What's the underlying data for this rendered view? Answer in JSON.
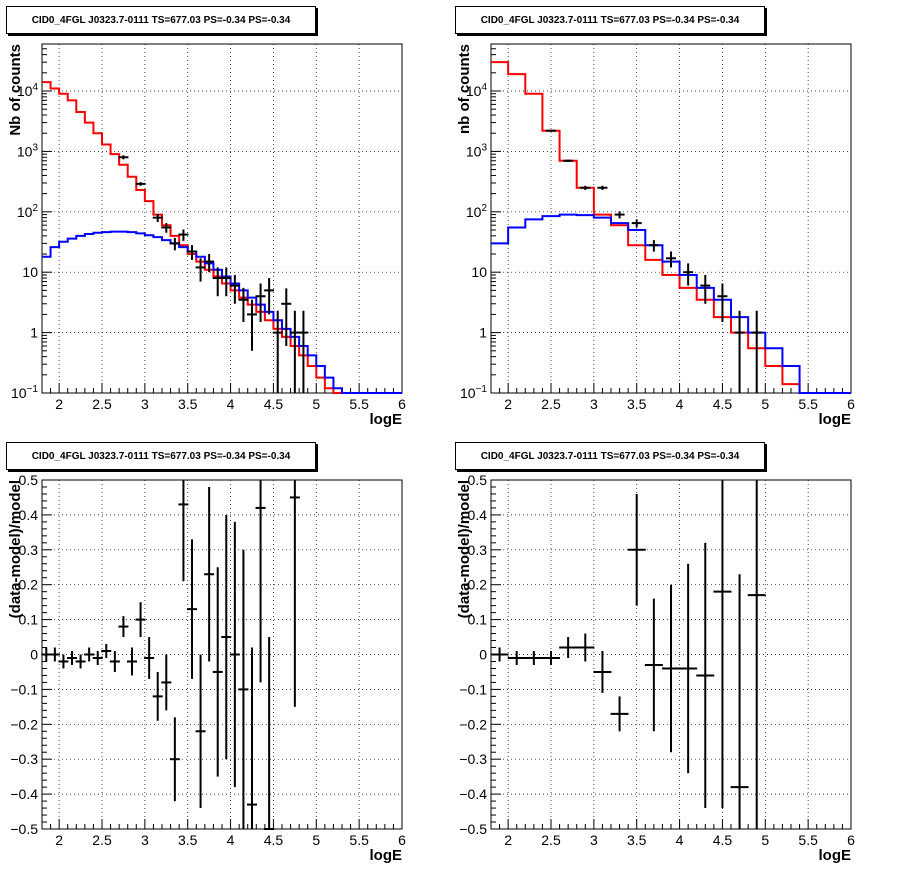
{
  "chart_data": [
    {
      "type": "line",
      "title": "CID0_4FGL J0323.7-0111 TS=677.03 PS=-0.34 PS=-0.34",
      "xlabel": "logE",
      "ylabel": "Nb of counts",
      "xlim": [
        1.8,
        6.0
      ],
      "ylim": [
        0.1,
        60000
      ],
      "yscale": "log",
      "grid": true,
      "xticks": [
        "2",
        "2.5",
        "3",
        "3.5",
        "4",
        "4.5",
        "5",
        "5.5",
        "6"
      ],
      "yticks": [
        "10^-1",
        "1",
        "10",
        "10^2",
        "10^3",
        "10^4"
      ],
      "bin_edges": [
        1.8,
        1.9,
        2.0,
        2.1,
        2.2,
        2.3,
        2.4,
        2.5,
        2.6,
        2.7,
        2.8,
        2.9,
        3.0,
        3.1,
        3.2,
        3.3,
        3.4,
        3.5,
        3.6,
        3.7,
        3.8,
        3.9,
        4.0,
        4.1,
        4.2,
        4.3,
        4.4,
        4.5,
        4.6,
        4.7,
        4.8,
        4.9,
        5.0,
        5.1,
        5.2,
        5.3,
        5.4,
        5.5,
        5.6,
        5.7,
        5.8,
        5.9,
        6.0
      ],
      "series": [
        {
          "color": "#ff0000",
          "style": "step",
          "values": [
            14000,
            11000,
            9000,
            7000,
            4500,
            3000,
            2000,
            1300,
            900,
            600,
            380,
            230,
            150,
            90,
            60,
            40,
            28,
            20,
            15,
            11,
            8.5,
            6.5,
            5,
            3.8,
            2.9,
            2.2,
            1.6,
            1.15,
            0.85,
            0.6,
            0.42,
            0.28,
            0.18,
            0.12,
            0.1,
            0.1,
            0.1,
            0.1,
            0.1,
            0.1,
            0.1,
            0.1
          ]
        },
        {
          "color": "#0000ff",
          "style": "step",
          "values": [
            18,
            26,
            32,
            36,
            40,
            43,
            45,
            46,
            47,
            47,
            46,
            44,
            41,
            38,
            34,
            30,
            26,
            22,
            18,
            14,
            11,
            8.5,
            6.5,
            5,
            3.8,
            2.9,
            2.2,
            1.6,
            1.15,
            0.85,
            0.6,
            0.42,
            0.28,
            0.18,
            0.12,
            0.1,
            0.1,
            0.1,
            0.1,
            0.1,
            0.1,
            0.1
          ]
        },
        {
          "color": "#000000",
          "style": "points",
          "x": [
            2.75,
            2.95,
            3.15,
            3.25,
            3.35,
            3.45,
            3.55,
            3.65,
            3.75,
            3.85,
            3.95,
            4.05,
            4.15,
            4.25,
            4.35,
            4.45,
            4.55,
            4.65,
            4.75,
            4.85
          ],
          "values": [
            800,
            290,
            80,
            55,
            30,
            42,
            22,
            12,
            15,
            8,
            8,
            6,
            3.5,
            2,
            4,
            5,
            1,
            3,
            1,
            1
          ],
          "yerr_lo": [
            60,
            20,
            12,
            10,
            7,
            9,
            6,
            5,
            5,
            4,
            4,
            3,
            2,
            1.5,
            2.5,
            3,
            0.9,
            2.4,
            0.9,
            0.9
          ],
          "yerr_hi": [
            60,
            20,
            12,
            10,
            7,
            9,
            6,
            5,
            5,
            4,
            4,
            3,
            2,
            1.5,
            2.5,
            3,
            1.3,
            2.4,
            1.3,
            1.3
          ]
        }
      ]
    },
    {
      "type": "line",
      "title": "CID0_4FGL J0323.7-0111 TS=677.03 PS=-0.34 PS=-0.34",
      "xlabel": "logE",
      "ylabel": "nb of counts",
      "xlim": [
        1.8,
        6.0
      ],
      "ylim": [
        0.1,
        60000
      ],
      "yscale": "log",
      "grid": true,
      "xticks": [
        "2",
        "2.5",
        "3",
        "3.5",
        "4",
        "4.5",
        "5",
        "5.5",
        "6"
      ],
      "yticks": [
        "10^-1",
        "1",
        "10",
        "10^2",
        "10^3",
        "10^4"
      ],
      "bin_edges": [
        1.8,
        2.0,
        2.2,
        2.4,
        2.6,
        2.8,
        3.0,
        3.2,
        3.4,
        3.6,
        3.8,
        4.0,
        4.2,
        4.4,
        4.6,
        4.8,
        5.0,
        5.2,
        5.4,
        5.6,
        5.8,
        6.0
      ],
      "series": [
        {
          "color": "#ff0000",
          "style": "step",
          "values": [
            30000,
            19000,
            9000,
            2200,
            700,
            250,
            90,
            60,
            28,
            16,
            9,
            5.5,
            3.5,
            1.8,
            1,
            0.55,
            0.28,
            0.14,
            0.1,
            0.1,
            0.1
          ]
        },
        {
          "color": "#0000ff",
          "style": "step",
          "values": [
            30,
            55,
            75,
            85,
            90,
            88,
            80,
            65,
            50,
            28,
            15,
            9,
            5.5,
            3.5,
            1.8,
            1,
            0.55,
            0.28,
            0.1,
            0.1,
            0.1
          ]
        },
        {
          "color": "#000000",
          "style": "points",
          "x": [
            2.5,
            2.7,
            2.9,
            3.1,
            3.3,
            3.5,
            3.7,
            3.9,
            4.1,
            4.3,
            4.5,
            4.7,
            4.9
          ],
          "values": [
            2200,
            700,
            250,
            250,
            90,
            65,
            28,
            17,
            10,
            6,
            4,
            1,
            1
          ],
          "yerr_lo": [
            50,
            30,
            20,
            20,
            12,
            10,
            6,
            5,
            4,
            3,
            2.5,
            0.9,
            0.9
          ],
          "yerr_hi": [
            50,
            30,
            20,
            20,
            12,
            10,
            6,
            5,
            4,
            3,
            2.5,
            1.3,
            1.3
          ]
        }
      ]
    },
    {
      "type": "scatter",
      "title": "CID0_4FGL J0323.7-0111 TS=677.03 PS=-0.34 PS=-0.34",
      "xlabel": "logE",
      "ylabel": "(data-model)/model",
      "xlim": [
        1.8,
        6.0
      ],
      "ylim": [
        -0.5,
        0.5
      ],
      "grid": true,
      "xticks": [
        "2",
        "2.5",
        "3",
        "3.5",
        "4",
        "4.5",
        "5",
        "5.5",
        "6"
      ],
      "yticks": [
        "-0.5",
        "-0.4",
        "-0.3",
        "-0.2",
        "-0.1",
        "0",
        "0.1",
        "0.2",
        "0.3",
        "0.4",
        "0.5"
      ],
      "series": [
        {
          "color": "#000000",
          "x": [
            1.85,
            1.95,
            2.05,
            2.15,
            2.25,
            2.35,
            2.45,
            2.55,
            2.65,
            2.75,
            2.85,
            2.95,
            3.05,
            3.15,
            3.25,
            3.35,
            3.45,
            3.55,
            3.65,
            3.75,
            3.85,
            3.95,
            4.05,
            4.15,
            4.25,
            4.35,
            4.45,
            4.75
          ],
          "values": [
            0.0,
            0.0,
            -0.02,
            -0.01,
            -0.02,
            0.0,
            -0.01,
            0.01,
            -0.02,
            0.08,
            -0.02,
            0.1,
            -0.01,
            -0.12,
            -0.08,
            -0.3,
            0.43,
            0.13,
            -0.22,
            0.23,
            -0.05,
            0.05,
            0.0,
            -0.1,
            -0.43,
            0.42,
            -0.5,
            0.45
          ],
          "yerr": [
            0.02,
            0.02,
            0.02,
            0.02,
            0.02,
            0.02,
            0.02,
            0.02,
            0.03,
            0.03,
            0.04,
            0.05,
            0.06,
            0.07,
            0.08,
            0.12,
            0.22,
            0.2,
            0.22,
            0.25,
            0.3,
            0.35,
            0.38,
            0.4,
            0.45,
            0.5,
            0.55,
            0.6
          ]
        }
      ]
    },
    {
      "type": "scatter",
      "title": "CID0_4FGL J0323.7-0111 TS=677.03 PS=-0.34 PS=-0.34",
      "xlabel": "logE",
      "ylabel": "(data-model)/model",
      "xlim": [
        1.8,
        6.0
      ],
      "ylim": [
        -0.5,
        0.5
      ],
      "grid": true,
      "xticks": [
        "2",
        "2.5",
        "3",
        "3.5",
        "4",
        "4.5",
        "5",
        "5.5",
        "6"
      ],
      "yticks": [
        "-0.5",
        "-0.4",
        "-0.3",
        "-0.2",
        "-0.1",
        "0",
        "0.1",
        "0.2",
        "0.3",
        "0.4",
        "0.5"
      ],
      "series": [
        {
          "color": "#000000",
          "x": [
            1.9,
            2.1,
            2.3,
            2.5,
            2.7,
            2.9,
            3.1,
            3.3,
            3.5,
            3.7,
            3.9,
            4.1,
            4.3,
            4.5,
            4.7,
            4.9
          ],
          "values": [
            0.0,
            -0.01,
            -0.01,
            -0.01,
            0.02,
            0.02,
            -0.05,
            -0.17,
            0.3,
            -0.03,
            -0.04,
            -0.04,
            -0.06,
            0.18,
            -0.38,
            0.17
          ],
          "yerr": [
            0.02,
            0.02,
            0.02,
            0.02,
            0.03,
            0.04,
            0.06,
            0.05,
            0.16,
            0.19,
            0.24,
            0.3,
            0.38,
            0.62,
            0.61,
            0.67
          ]
        }
      ]
    }
  ]
}
